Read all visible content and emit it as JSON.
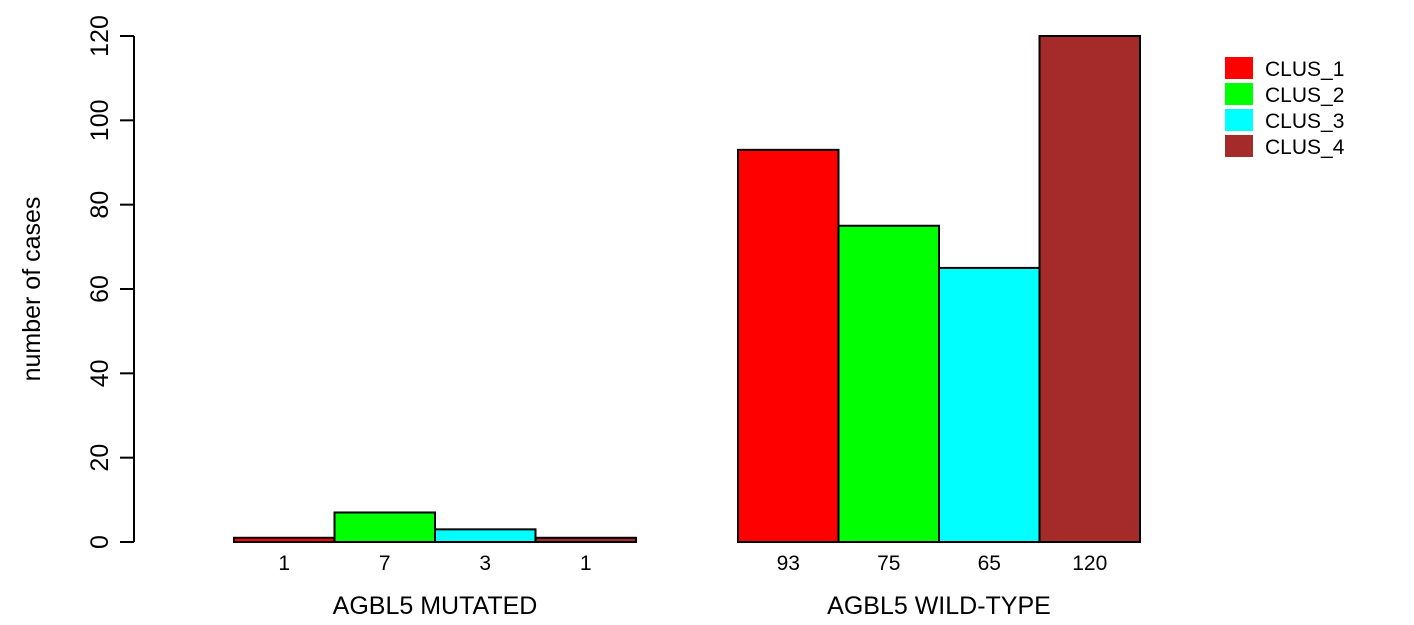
{
  "chart_data": {
    "type": "bar",
    "layout": "grouped",
    "ylabel": "number of cases",
    "ylim": [
      0,
      120
    ],
    "yticks": [
      0,
      20,
      40,
      60,
      80,
      100,
      120
    ],
    "categories": [
      "AGBL5 MUTATED",
      "AGBL5 WILD-TYPE"
    ],
    "series": [
      {
        "name": "CLUS_1",
        "color": "#ff0000",
        "values": [
          1,
          93
        ]
      },
      {
        "name": "CLUS_2",
        "color": "#00ff00",
        "values": [
          7,
          75
        ]
      },
      {
        "name": "CLUS_3",
        "color": "#00ffff",
        "values": [
          3,
          65
        ]
      },
      {
        "name": "CLUS_4",
        "color": "#a52a2a",
        "values": [
          1,
          120
        ]
      }
    ],
    "bar_labels": [
      [
        "1",
        "7",
        "3",
        "1"
      ],
      [
        "93",
        "75",
        "65",
        "120"
      ]
    ],
    "legend_position": "top-right",
    "grid": false
  }
}
